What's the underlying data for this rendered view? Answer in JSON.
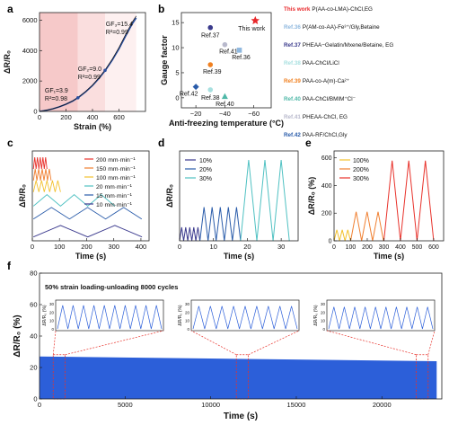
{
  "panels": {
    "a": {
      "letter": "a"
    },
    "b": {
      "letter": "b"
    },
    "c": {
      "letter": "c"
    },
    "d": {
      "letter": "d"
    },
    "e": {
      "letter": "e"
    },
    "f": {
      "letter": "f"
    }
  },
  "chart_data": [
    {
      "panel": "a",
      "type": "line",
      "xlabel": "Strain (%)",
      "ylabel": "ΔR/R₀",
      "xlim": [
        0,
        800
      ],
      "ylim": [
        0,
        6500
      ],
      "xticks": [
        0,
        200,
        400,
        600
      ],
      "yticks": [
        0,
        2000,
        4000,
        6000
      ],
      "regions": [
        {
          "from": 0,
          "to": 290,
          "color": "#f6c9c9"
        },
        {
          "from": 290,
          "to": 495,
          "color": "#fadede"
        },
        {
          "from": 495,
          "to": 730,
          "color": "#fdf0f0"
        }
      ],
      "annotations": [
        {
          "gf": "GF₁=3.9",
          "r2": "R²=0.98",
          "x": 40,
          "y": 1250
        },
        {
          "gf": "GF₂=9.0",
          "r2": "R²=0.99",
          "x": 290,
          "y": 2650
        },
        {
          "gf": "GF₃=15.4",
          "r2": "R²=0.99",
          "x": 500,
          "y": 5600
        }
      ],
      "series": [
        {
          "x": [
            0,
            30,
            60,
            100,
            150,
            200,
            250,
            300,
            350,
            400,
            450,
            500,
            550,
            600,
            650,
            700,
            730
          ],
          "y": [
            0,
            40,
            90,
            170,
            300,
            470,
            680,
            960,
            1300,
            1700,
            2180,
            2740,
            3380,
            4120,
            4960,
            5760,
            6150
          ]
        }
      ],
      "points": {
        "x": [
          290,
          495
        ],
        "y": [
          900,
          2700
        ]
      }
    },
    {
      "panel": "b",
      "type": "scatter",
      "xlabel": "Anti-freezing temperature (°C)",
      "ylabel": "Gauge factor",
      "xlim": [
        -10,
        -72
      ],
      "ylim": [
        -2,
        17
      ],
      "xticks": [
        -20,
        -40,
        -60
      ],
      "yticks": [
        0,
        5,
        10,
        15
      ],
      "points": [
        {
          "label": "This work",
          "x": -61,
          "y": 15.4,
          "color": "#e8282b",
          "shape": "star"
        },
        {
          "label": "Ref.37",
          "x": -30,
          "y": 14,
          "color": "#3a3a8c",
          "shape": "circle"
        },
        {
          "label": "Ref.41",
          "x": -40,
          "y": 10.6,
          "color": "#b8b9cc",
          "shape": "circle"
        },
        {
          "label": "Ref.36",
          "x": -50,
          "y": 9.5,
          "color": "#8fb8df",
          "shape": "square"
        },
        {
          "label": "Ref.39",
          "x": -30,
          "y": 6.6,
          "color": "#f08020",
          "shape": "circle"
        },
        {
          "label": "Ref.42",
          "x": -20,
          "y": 2.2,
          "color": "#2a5caa",
          "shape": "diamond"
        },
        {
          "label": "Ref.38",
          "x": -30,
          "y": 1.6,
          "color": "#a8e0e0",
          "shape": "circle"
        },
        {
          "label": "Ref.40",
          "x": -40,
          "y": 0.3,
          "color": "#4fb8a8",
          "shape": "triangle"
        }
      ],
      "legend": [
        {
          "ref": "This work",
          "text": "P(AA-co-LMA)-ChCl,EG",
          "color": "#e8282b"
        },
        {
          "ref": "Ref.36",
          "text": "P(AM-co-AA)-Fe³⁺/Gly,Betaine",
          "color": "#8fb8df"
        },
        {
          "ref": "Ref.37",
          "text": "PHEAA−Gelatin/Mxene/Betaine, EG",
          "color": "#3a3a8c"
        },
        {
          "ref": "Ref.38",
          "text": "PAA-ChCl/LiCl",
          "color": "#a8e0e0"
        },
        {
          "ref": "Ref.39",
          "text": "PAA-co-A(m)-Ca²⁺",
          "color": "#f08020"
        },
        {
          "ref": "Ref.40",
          "text": "PAA-ChCl/BMIM⁺Cl⁻",
          "color": "#4fb8a8"
        },
        {
          "ref": "Ref.41",
          "text": "PHEAA-ChCl, EG",
          "color": "#b8b9cc"
        },
        {
          "ref": "Ref.42",
          "text": "PAA-RF/ChCl,Gly",
          "color": "#2a5caa"
        }
      ]
    },
    {
      "panel": "c",
      "type": "line",
      "xlabel": "Time (s)",
      "ylabel": "ΔR/R₀",
      "xlim": [
        0,
        430
      ],
      "xticks": [
        0,
        100,
        200,
        300,
        400
      ],
      "series": [
        {
          "name": "200 mm·min⁻¹",
          "color": "#e8322b",
          "period": 10,
          "cycles": 5,
          "amp": 0.9,
          "offset": 5.6
        },
        {
          "name": "150 mm·min⁻¹",
          "color": "#f07f30",
          "period": 13,
          "cycles": 5,
          "amp": 0.9,
          "offset": 4.7
        },
        {
          "name": "100 mm·min⁻¹",
          "color": "#f2c12e",
          "period": 20,
          "cycles": 5,
          "amp": 0.9,
          "offset": 3.8
        },
        {
          "name": "20 mm·min⁻¹",
          "color": "#4fc1c2",
          "period": 100,
          "cycles": 3,
          "amp": 0.9,
          "offset": 2.7
        },
        {
          "name": "15 mm·min⁻¹",
          "color": "#2a5caa",
          "period": 133,
          "cycles": 3,
          "amp": 0.9,
          "offset": 1.7
        },
        {
          "name": "10 mm·min⁻¹",
          "color": "#3b3a8e",
          "period": 200,
          "cycles": 2,
          "amp": 0.9,
          "offset": 0.3
        }
      ]
    },
    {
      "panel": "d",
      "type": "line",
      "xlabel": "Time (s)",
      "ylabel": "ΔR/R₀",
      "xlim": [
        0,
        35
      ],
      "ylim": [
        0,
        20
      ],
      "xticks": [
        0,
        10,
        20,
        30
      ],
      "series": [
        {
          "name": "10%",
          "color": "#3b3a8e",
          "t0": 0,
          "period": 1.2,
          "cycles": 5,
          "peak": 3
        },
        {
          "name": "20%",
          "color": "#2a5caa",
          "t0": 6,
          "period": 2.4,
          "cycles": 5,
          "peak": 7.5
        },
        {
          "name": "30%",
          "color": "#4fc1c2",
          "t0": 18,
          "period": 4.8,
          "cycles": 3,
          "peak": 18
        }
      ]
    },
    {
      "panel": "e",
      "type": "line",
      "xlabel": "Time (s)",
      "ylabel": "ΔR/R₀ (%)",
      "xlim": [
        0,
        660
      ],
      "ylim": [
        0,
        650
      ],
      "xticks": [
        0,
        100,
        200,
        300,
        400,
        500,
        600
      ],
      "yticks": [
        0,
        200,
        400,
        600
      ],
      "series": [
        {
          "name": "100%",
          "color": "#f2c12e",
          "t0": 0,
          "period": 33,
          "cycles": 3,
          "peak": 80
        },
        {
          "name": "200%",
          "color": "#f07f30",
          "t0": 100,
          "period": 66,
          "cycles": 3,
          "peak": 210
        },
        {
          "name": "300%",
          "color": "#e8322b",
          "t0": 300,
          "period": 100,
          "cycles": 3,
          "peak": 580
        }
      ]
    },
    {
      "panel": "f",
      "type": "area",
      "title": "50% strain loading-unloading 8000 cycles",
      "xlabel": "Time (s)",
      "ylabel": "ΔR/R₀ (%)",
      "xlim": [
        0,
        23500
      ],
      "ylim": [
        0,
        80
      ],
      "xticks": [
        0,
        5000,
        10000,
        15000,
        20000
      ],
      "yticks": [
        0,
        20,
        40,
        60,
        80
      ],
      "fill": {
        "min": 0,
        "max": 27,
        "max_end": 24,
        "color": "#2c5fd9"
      },
      "insets": [
        {
          "from": 800,
          "to": 1500,
          "ylabel": "ΔR/R₀ (%)",
          "yticks": [
            0,
            10,
            20,
            30
          ],
          "cycles": 10,
          "peak": 28
        },
        {
          "from": 11500,
          "to": 12200,
          "ylabel": "ΔR/R₀ (%)",
          "yticks": [
            0,
            10,
            20,
            30
          ],
          "cycles": 9,
          "peak": 27
        },
        {
          "from": 22000,
          "to": 22700,
          "ylabel": "ΔR/R₀ (%)",
          "yticks": [
            0,
            10,
            20,
            30
          ],
          "cycles": 10,
          "peak": 26
        }
      ]
    }
  ]
}
